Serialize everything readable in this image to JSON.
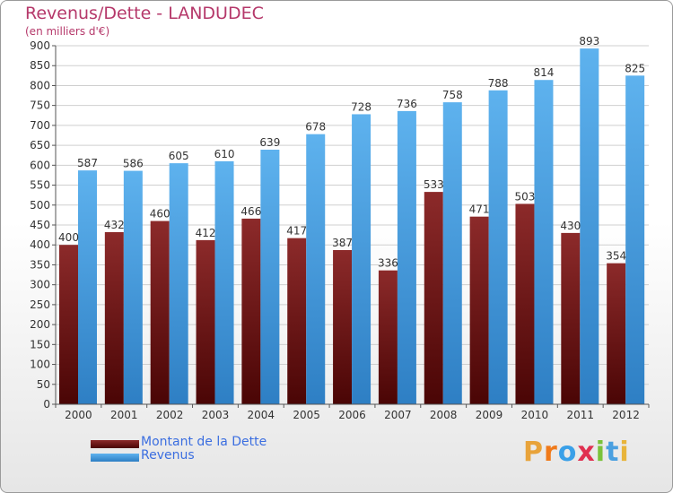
{
  "title": "Revenus/Dette - LANDUDEC",
  "subtitle": "(en milliers d'€)",
  "logo_text": "Proxiti",
  "colors": {
    "debt": "#7a1a1a",
    "revenue": "#4ea6e6",
    "title": "#b5386a",
    "legend_text": "#3b6ee0"
  },
  "chart_data": {
    "type": "bar",
    "categories": [
      "2000",
      "2001",
      "2002",
      "2003",
      "2004",
      "2005",
      "2006",
      "2007",
      "2008",
      "2009",
      "2010",
      "2011",
      "2012"
    ],
    "series": [
      {
        "name": "Montant de la Dette",
        "values": [
          400,
          432,
          460,
          412,
          466,
          417,
          387,
          336,
          533,
          471,
          503,
          430,
          354
        ]
      },
      {
        "name": "Revenus",
        "values": [
          587,
          586,
          605,
          610,
          639,
          678,
          728,
          736,
          758,
          788,
          814,
          893,
          825
        ]
      }
    ],
    "ylim": [
      0,
      900
    ],
    "yticks": [
      0,
      50,
      100,
      150,
      200,
      250,
      300,
      350,
      400,
      450,
      500,
      550,
      600,
      650,
      700,
      750,
      800,
      850,
      900
    ],
    "grid": true,
    "legend": "bottom-left"
  }
}
